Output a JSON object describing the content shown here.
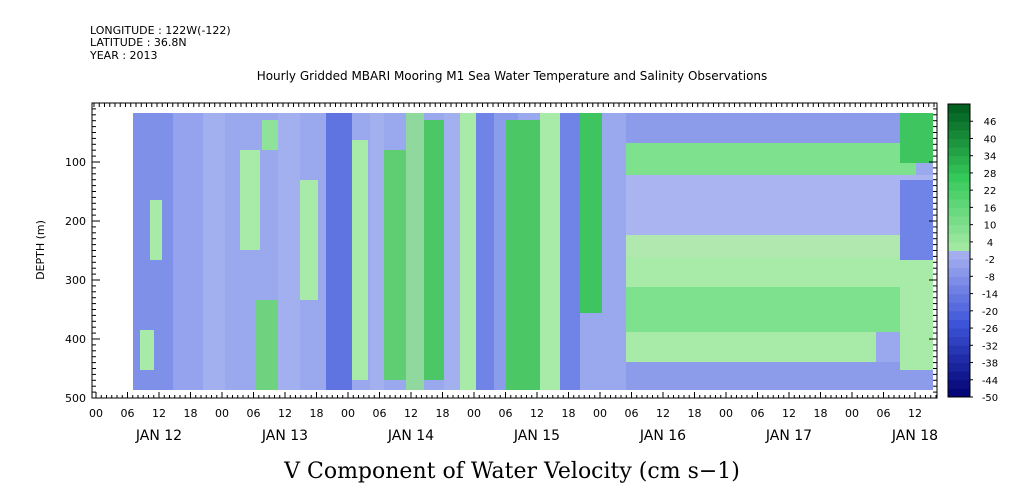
{
  "header": {
    "longitude": "LONGITUDE : 122W(-122)",
    "latitude": "LATITUDE : 36.8N",
    "year": "YEAR : 2013"
  },
  "chart_data": {
    "type": "heatmap",
    "title": "Hourly Gridded MBARI Mooring M1 Sea Water Temperature and Salinity Observations",
    "xlabel": "V Component of Water Velocity (cm s−1)",
    "ylabel": "DEPTH (m)",
    "ylim": [
      500,
      0
    ],
    "y_ticks": [
      100,
      200,
      300,
      400,
      500
    ],
    "y_tick_labels": [
      "100",
      "200",
      "300",
      "400",
      "500"
    ],
    "x_hour_tick_labels": [
      "00",
      "06",
      "12",
      "18",
      "00",
      "06",
      "12",
      "18",
      "00",
      "06",
      "12",
      "18",
      "00",
      "06",
      "12",
      "18",
      "00",
      "06",
      "12",
      "18",
      "00",
      "06",
      "12",
      "18",
      "00",
      "06",
      "12"
    ],
    "x_day_labels": [
      "JAN 12",
      "JAN 13",
      "JAN 14",
      "JAN 15",
      "JAN 16",
      "JAN 17",
      "JAN 18"
    ],
    "colorbar_labels": [
      "46",
      "40",
      "34",
      "28",
      "22",
      "16",
      "10",
      "4",
      "-2",
      "-8",
      "-14",
      "-20",
      "-26",
      "-32",
      "-38",
      "-44",
      "-50"
    ],
    "colorbar_range": [
      -50,
      52
    ],
    "colorbar_step": 6,
    "colors": {
      "strong_negative": "#000070",
      "mid_negative": "#3d54d8",
      "weak_negative": "#aab4f0",
      "weak_positive": "#a8eaa8",
      "mid_positive": "#35c95a",
      "strong_positive": "#005a1e"
    }
  }
}
